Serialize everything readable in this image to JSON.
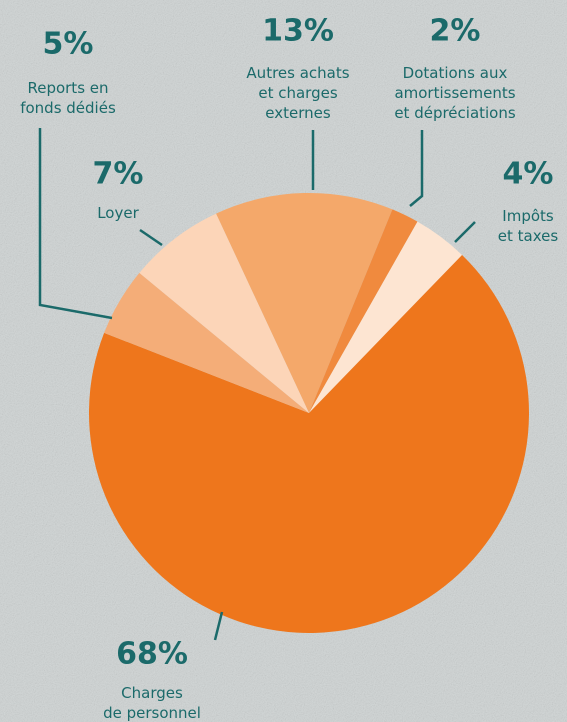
{
  "chart_data": {
    "type": "pie",
    "categories": [
      "Autres achats\net charges\nexternes",
      "Dotations aux\namortissements\net dépréciations",
      "Impôts\net taxes",
      "Charges\nde personnel",
      "Reports en\nfonds dédiés",
      "Loyer"
    ],
    "values": [
      13,
      2,
      4,
      68,
      5,
      7
    ],
    "value_labels": [
      "13%",
      "2%",
      "4%",
      "68%",
      "5%",
      "7%"
    ],
    "colors": [
      "#f4a86a",
      "#f08a3e",
      "#fde5d2",
      "#ee761c",
      "#f4ad78",
      "#fcd5b8"
    ]
  }
}
